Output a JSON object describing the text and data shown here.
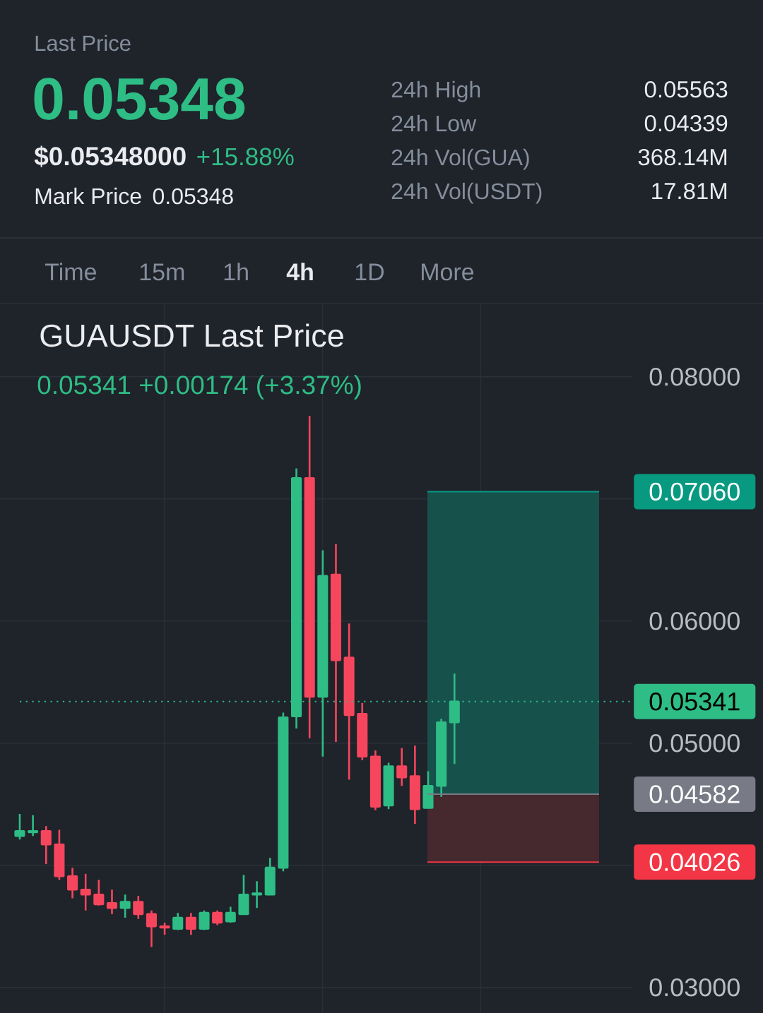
{
  "chart_data": [
    {
      "type": "other",
      "title": "Last Price",
      "annotations": [
        "0.05348",
        "$0.05348000",
        "+15.88%",
        "Mark Price",
        "0.05348",
        "24h High",
        "0.05563",
        "24h Low",
        "0.04339",
        "24h Vol(GUA)",
        "368.14M",
        "24h Vol(USDT)",
        "17.81M",
        "Time",
        "15m",
        "1h",
        "4h",
        "1D",
        "More"
      ]
    },
    {
      "type": "candlestick",
      "title": "GUAUSDT Last Price",
      "subtitle": "0.05341 +0.00174 (+3.37%)",
      "categories": [
        null,
        null,
        null,
        null,
        null,
        null,
        null,
        null,
        null,
        null,
        null,
        null,
        null,
        null,
        null,
        null,
        null,
        null,
        null,
        null,
        null,
        null,
        null,
        null,
        null,
        null,
        null,
        null,
        null,
        null,
        null,
        null,
        null,
        null,
        null,
        null,
        null,
        null,
        null,
        null,
        null,
        null,
        null,
        null,
        null,
        null,
        null,
        null
      ],
      "ohlc": [
        null,
        [
          0.0424,
          0.0442,
          0.0421,
          0.0428
        ],
        [
          0.0427,
          0.0441,
          0.0424,
          0.0428
        ],
        [
          0.0428,
          0.0432,
          0.0401,
          0.0417
        ],
        [
          0.0417,
          0.0429,
          0.0388,
          0.0391
        ],
        [
          0.0391,
          0.0398,
          0.0373,
          0.038
        ],
        [
          0.038,
          0.0393,
          0.0363,
          0.0376
        ],
        [
          0.0376,
          0.0388,
          0.0367,
          0.0368
        ],
        [
          0.0369,
          0.038,
          0.036,
          0.0365
        ],
        [
          0.0365,
          0.0376,
          0.0357,
          0.037
        ],
        [
          0.037,
          0.0375,
          0.0356,
          0.036
        ],
        [
          0.036,
          0.0363,
          0.0333,
          0.035
        ],
        [
          0.035,
          0.0353,
          0.0343,
          0.0349
        ],
        [
          0.0348,
          0.0361,
          0.0347,
          0.0357
        ],
        [
          0.0357,
          0.0361,
          0.0343,
          0.0348
        ],
        [
          0.0348,
          0.0363,
          0.0347,
          0.0361
        ],
        [
          0.0361,
          0.0363,
          0.0351,
          0.0353
        ],
        [
          0.0354,
          0.0366,
          0.0353,
          0.0361
        ],
        [
          0.036,
          0.0392,
          0.036,
          0.0376
        ],
        [
          0.0376,
          0.0387,
          0.0365,
          0.0377
        ],
        [
          0.0376,
          0.0406,
          0.0376,
          0.0398
        ],
        [
          0.0398,
          0.0525,
          0.0395,
          0.0521
        ],
        [
          0.0522,
          0.0725,
          0.0512,
          0.0717
        ],
        [
          0.0717,
          0.0768,
          0.0504,
          0.0538
        ],
        [
          0.0538,
          0.0658,
          0.0489,
          0.0637
        ],
        [
          0.0638,
          0.0663,
          0.0501,
          0.0568
        ],
        [
          0.057,
          0.0598,
          0.047,
          0.0523
        ],
        [
          0.0524,
          0.0533,
          0.0486,
          0.0489
        ],
        [
          0.0489,
          0.0494,
          0.0445,
          0.0448
        ],
        [
          0.0449,
          0.0484,
          0.0446,
          0.0481
        ],
        [
          0.0481,
          0.0496,
          0.0465,
          0.0472
        ],
        [
          0.0473,
          0.0498,
          0.0434,
          0.0446
        ],
        [
          0.0447,
          0.0477,
          0.0447,
          0.0465
        ],
        [
          0.0465,
          0.052,
          0.0456,
          0.0517
        ],
        [
          0.0517,
          0.0557,
          0.0483,
          0.05341
        ],
        null,
        null,
        null,
        null,
        null,
        null,
        null,
        null,
        null,
        null,
        null,
        null,
        null
      ],
      "colors": [
        null,
        "#2ebd85",
        "#2ebd85",
        "#f6465d",
        "#f6465d",
        "#f6465d",
        "#f6465d",
        "#f6465d",
        "#f6465d",
        "#2ebd85",
        "#f6465d",
        "#f6465d",
        "#f6465d",
        "#2ebd85",
        "#f6465d",
        "#2ebd85",
        "#f6465d",
        "#2ebd85",
        "#2ebd85",
        "#2ebd85",
        "#2ebd85",
        "#2ebd85",
        "#2ebd85",
        "#f6465d",
        "#2ebd85",
        "#f6465d",
        "#f6465d",
        "#f6465d",
        "#f6465d",
        "#2ebd85",
        "#f6465d",
        "#f6465d",
        "#2ebd85",
        "#2ebd85",
        "#2ebd85",
        null,
        null,
        null,
        null,
        null,
        null,
        null,
        null,
        null,
        null,
        null,
        null,
        null
      ],
      "ylim": [
        0.0279,
        0.086
      ],
      "yticks": [
        {
          "value": 0.03,
          "label": "0.03000"
        },
        {
          "value": 0.04,
          "label": null
        },
        {
          "value": 0.05,
          "label": "0.05000"
        },
        {
          "value": 0.06,
          "label": "0.06000"
        },
        {
          "value": 0.07,
          "label": null
        },
        {
          "value": 0.08,
          "label": "0.08000"
        }
      ],
      "grid": true,
      "tick_labels": "y",
      "ref_lines": [
        {
          "axis": "y",
          "value": 0.0706,
          "label": "0.07060",
          "color": "#089981",
          "line_style": "solid"
        },
        {
          "axis": "y",
          "value": 0.05341,
          "label": "0.05341",
          "color": "#2ebd85",
          "line_style": "dotted"
        },
        {
          "axis": "y",
          "value": 0.04582,
          "label": "0.04582",
          "color": "#787b86",
          "line_style": "solid"
        },
        {
          "axis": "y",
          "value": 0.04026,
          "label": "0.04026",
          "color": "#f23645",
          "line_style": "solid"
        }
      ],
      "bands": [
        {
          "axis": "y",
          "from": 0.04582,
          "to": 0.0706,
          "color": "#17514c"
        },
        {
          "axis": "y",
          "from": 0.04026,
          "to": 0.04582,
          "color": "#46282f"
        }
      ]
    }
  ]
}
